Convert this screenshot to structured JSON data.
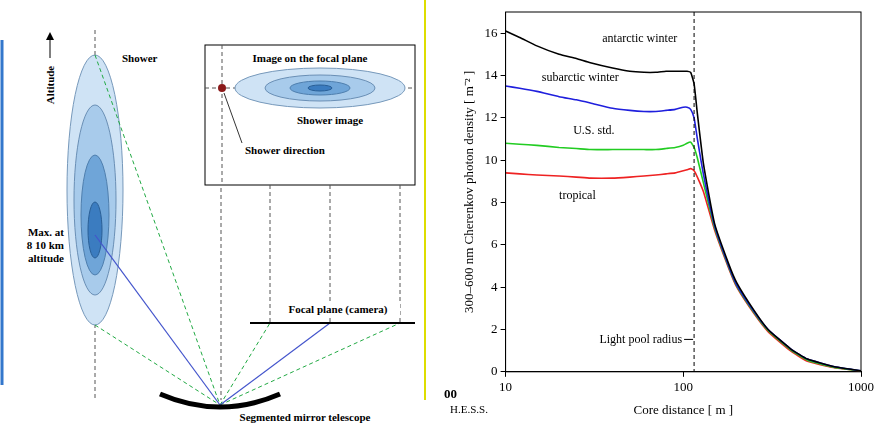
{
  "diagram": {
    "altitude_label": "Altitude",
    "shower_label": "Shower",
    "shower_max_label": [
      "Max. at",
      "8 10 km",
      "altitude"
    ],
    "inset_title": "Image on the focal plane",
    "shower_image_label": "Shower image",
    "shower_direction_label": "Shower direction",
    "focal_plane_label": "Focal plane (camera)",
    "telescope_label": "Segmented mirror telescope"
  },
  "extras": {
    "axis_fragment": "00",
    "credit": "H.E.S.S."
  },
  "chart_data": {
    "type": "line",
    "x_label": "Core distance [ m ]",
    "y_label": "300–600 nm Cherenkov photon density [ m⁻² ]",
    "log": "x",
    "grid": false,
    "xlim": [
      10,
      1000
    ],
    "xticks": [
      10,
      100,
      1000
    ],
    "ylim": [
      0,
      17
    ],
    "yticks": [
      0,
      2,
      4,
      6,
      8,
      10,
      12,
      14,
      16
    ],
    "x": [
      10,
      12,
      15,
      20,
      25,
      30,
      40,
      50,
      60,
      70,
      80,
      90,
      100,
      105,
      110,
      115,
      120,
      130,
      150,
      180,
      200,
      250,
      300,
      400,
      500,
      700,
      1000
    ],
    "series": [
      {
        "name": "antarctic winter",
        "color": "#000000",
        "values": [
          16.1,
          15.8,
          15.4,
          15.0,
          14.8,
          14.6,
          14.35,
          14.2,
          14.15,
          14.15,
          14.2,
          14.2,
          14.2,
          14.2,
          14.15,
          13.6,
          12.2,
          9.8,
          7.0,
          5.1,
          4.2,
          2.9,
          2.0,
          1.1,
          0.6,
          0.25,
          0.05
        ]
      },
      {
        "name": "subarctic winter",
        "color": "#1f1fdd",
        "values": [
          13.5,
          13.4,
          13.25,
          13.0,
          12.85,
          12.7,
          12.45,
          12.35,
          12.3,
          12.3,
          12.35,
          12.4,
          12.5,
          12.5,
          12.4,
          12.0,
          11.0,
          9.3,
          6.9,
          5.0,
          4.1,
          2.85,
          2.0,
          1.1,
          0.6,
          0.25,
          0.05
        ]
      },
      {
        "name": "U.S. std.",
        "color": "#22cc22",
        "values": [
          10.8,
          10.75,
          10.7,
          10.6,
          10.55,
          10.5,
          10.5,
          10.5,
          10.5,
          10.5,
          10.55,
          10.6,
          10.7,
          10.8,
          10.85,
          10.6,
          10.1,
          8.9,
          6.8,
          4.95,
          4.05,
          2.8,
          1.95,
          1.05,
          0.55,
          0.22,
          0.04
        ]
      },
      {
        "name": "tropical",
        "color": "#ee2222",
        "values": [
          9.4,
          9.35,
          9.3,
          9.25,
          9.2,
          9.15,
          9.15,
          9.2,
          9.25,
          9.3,
          9.35,
          9.4,
          9.5,
          9.55,
          9.6,
          9.5,
          9.2,
          8.5,
          6.7,
          4.9,
          4.0,
          2.75,
          1.9,
          1.0,
          0.5,
          0.2,
          0.03
        ]
      }
    ],
    "annotations": [
      {
        "text": "Light pool radius",
        "x": 115,
        "line_style": "dashed"
      }
    ]
  }
}
